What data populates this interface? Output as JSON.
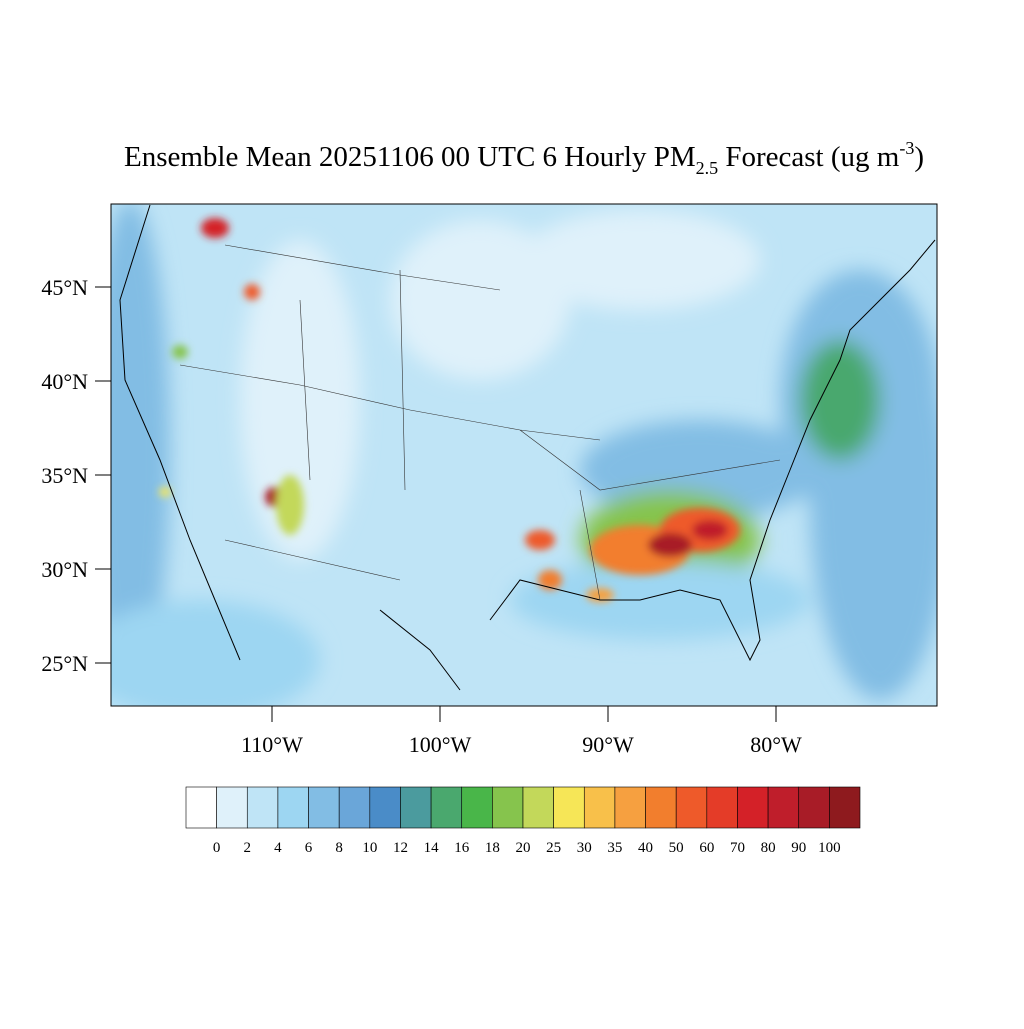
{
  "title": {
    "main": "Ensemble Mean 20251106 00 UTC 6 Hourly PM",
    "subscript": "2.5",
    "middle": " Forecast (ug m",
    "superscript": "-3",
    "end": ")"
  },
  "map": {
    "lat_ticks": [
      {
        "value": 45,
        "label": "45°N"
      },
      {
        "value": 40,
        "label": "40°N"
      },
      {
        "value": 35,
        "label": "35°N"
      },
      {
        "value": 30,
        "label": "30°N"
      },
      {
        "value": 25,
        "label": "25°N"
      }
    ],
    "lon_ticks": [
      {
        "value": -110,
        "label": "110°W"
      },
      {
        "value": -100,
        "label": "100°W"
      },
      {
        "value": -90,
        "label": "90°W"
      },
      {
        "value": -80,
        "label": "80°W"
      }
    ]
  },
  "colorbar": {
    "levels": [
      0,
      2,
      4,
      6,
      8,
      10,
      12,
      14,
      16,
      18,
      20,
      25,
      30,
      35,
      40,
      50,
      60,
      70,
      80,
      90,
      100
    ],
    "colors": [
      "#ffffff",
      "#dff1fa",
      "#bfe4f6",
      "#9dd6f2",
      "#82bde4",
      "#6aa6d9",
      "#4a8cc8",
      "#4b9b9e",
      "#4aa86e",
      "#49b649",
      "#86c44d",
      "#c3d85a",
      "#f6e657",
      "#f8c04a",
      "#f6a040",
      "#f27e2d",
      "#ee5a2a",
      "#e43c28",
      "#d42128",
      "#bf1e2b",
      "#a81c27",
      "#8e1a1e"
    ]
  }
}
